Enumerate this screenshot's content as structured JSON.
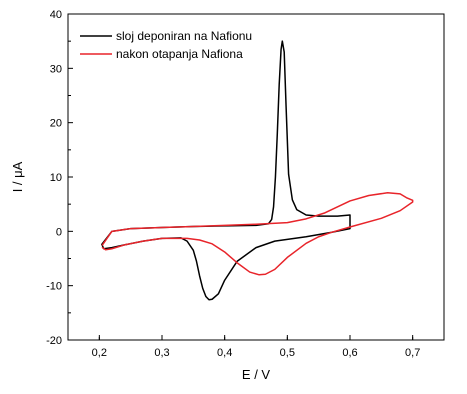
{
  "chart_data": {
    "type": "line",
    "xlabel": "E / V",
    "ylabel": "I / μA",
    "xlim": [
      0.15,
      0.75
    ],
    "ylim": [
      -20,
      40
    ],
    "x_ticks": [
      0.2,
      0.3,
      0.4,
      0.5,
      0.6,
      0.7
    ],
    "x_tick_labels": [
      "0,2",
      "0,3",
      "0,4",
      "0,5",
      "0,6",
      "0,7"
    ],
    "y_ticks": [
      -20,
      -10,
      0,
      10,
      20,
      30,
      40
    ],
    "y_tick_labels": [
      "-20",
      "-10",
      "0",
      "10",
      "20",
      "30",
      "40"
    ],
    "grid": false,
    "legend_position": "top-left",
    "series": [
      {
        "name": "sloj deponiran na Nafionu",
        "color": "#000000",
        "x": [
          0.204,
          0.22,
          0.25,
          0.3,
          0.35,
          0.4,
          0.45,
          0.47,
          0.475,
          0.478,
          0.481,
          0.484,
          0.487,
          0.49,
          0.492,
          0.495,
          0.498,
          0.502,
          0.508,
          0.515,
          0.53,
          0.55,
          0.58,
          0.6,
          0.6,
          0.57,
          0.53,
          0.48,
          0.45,
          0.42,
          0.4,
          0.39,
          0.38,
          0.375,
          0.37,
          0.365,
          0.36,
          0.355,
          0.35,
          0.34,
          0.33,
          0.3,
          0.27,
          0.24,
          0.22,
          0.207,
          0.204
        ],
        "y": [
          -2.4,
          0.0,
          0.5,
          0.7,
          0.9,
          1.0,
          1.1,
          1.4,
          2.2,
          4.5,
          10.0,
          18.0,
          27.0,
          33.5,
          35.0,
          33.0,
          23.0,
          10.5,
          5.8,
          4.0,
          3.0,
          2.8,
          2.8,
          3.0,
          0.5,
          -0.2,
          -1.0,
          -1.8,
          -3.0,
          -5.5,
          -9.0,
          -11.5,
          -12.5,
          -12.6,
          -12.0,
          -10.5,
          -8.2,
          -5.5,
          -3.5,
          -1.8,
          -1.2,
          -1.3,
          -1.8,
          -2.5,
          -3.0,
          -3.2,
          -2.4
        ]
      },
      {
        "name": "nakon otapanja Nafiona",
        "color": "#e8242a",
        "x": [
          0.205,
          0.22,
          0.25,
          0.3,
          0.35,
          0.4,
          0.45,
          0.5,
          0.53,
          0.56,
          0.6,
          0.63,
          0.66,
          0.68,
          0.69,
          0.7,
          0.7,
          0.68,
          0.65,
          0.6,
          0.57,
          0.55,
          0.53,
          0.5,
          0.48,
          0.465,
          0.455,
          0.44,
          0.42,
          0.4,
          0.38,
          0.36,
          0.34,
          0.3,
          0.27,
          0.24,
          0.22,
          0.21,
          0.205
        ],
        "y": [
          -2.5,
          0.0,
          0.5,
          0.7,
          0.9,
          1.1,
          1.3,
          1.6,
          2.3,
          3.4,
          5.6,
          6.6,
          7.1,
          6.9,
          6.2,
          5.7,
          5.4,
          3.8,
          2.4,
          0.8,
          -0.2,
          -1.0,
          -2.2,
          -4.8,
          -7.0,
          -7.9,
          -8.0,
          -7.5,
          -5.8,
          -3.8,
          -2.3,
          -1.6,
          -1.3,
          -1.3,
          -1.8,
          -2.5,
          -3.2,
          -3.4,
          -3.0
        ]
      }
    ]
  }
}
